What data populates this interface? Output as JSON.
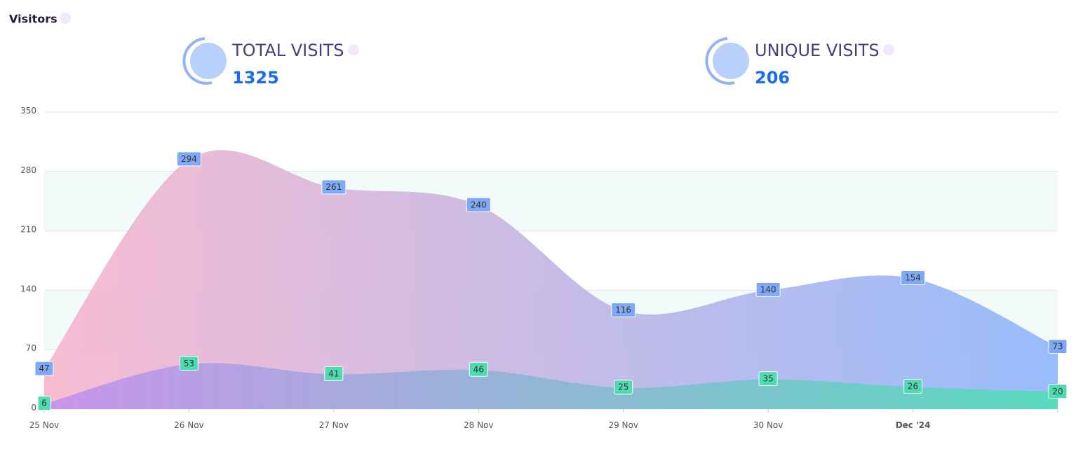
{
  "header": {
    "title": "Visitors"
  },
  "kpis": [
    {
      "label": "TOTAL VISITS",
      "value": "1325"
    },
    {
      "label": "UNIQUE VISITS",
      "value": "206"
    }
  ],
  "chart_data": {
    "type": "area",
    "categories": [
      "25 Nov",
      "26 Nov",
      "27 Nov",
      "28 Nov",
      "29 Nov",
      "30 Nov",
      "Dec '24",
      null
    ],
    "series": [
      {
        "color": [
          "#f7b8cf",
          "#93b9fb"
        ],
        "label_color": "#7fa8f5",
        "values": [
          47,
          294,
          261,
          240,
          116,
          140,
          154,
          73
        ]
      },
      {
        "color": [
          "#c490ee",
          "#52ddb8"
        ],
        "label_color": "#4fdbb0",
        "values": [
          6,
          53,
          41,
          46,
          25,
          35,
          26,
          20
        ]
      }
    ],
    "ylim": [
      0,
      350
    ],
    "yticks": [
      0,
      70,
      140,
      210,
      280,
      350
    ],
    "grid": true,
    "smooth": true
  }
}
